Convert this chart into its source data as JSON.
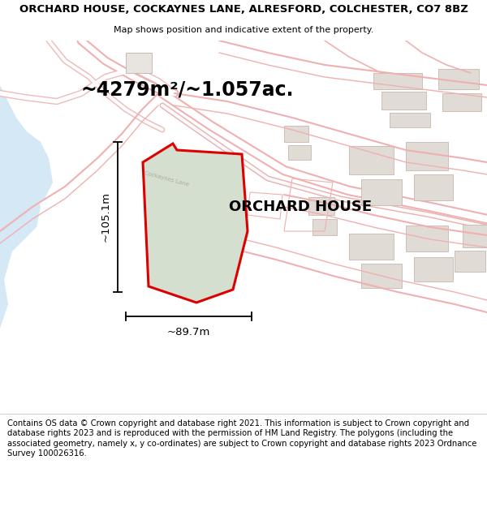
{
  "title": "ORCHARD HOUSE, COCKAYNES LANE, ALRESFORD, COLCHESTER, CO7 8BZ",
  "subtitle": "Map shows position and indicative extent of the property.",
  "footer": "Contains OS data © Crown copyright and database right 2021. This information is subject to Crown copyright and database rights 2023 and is reproduced with the permission of HM Land Registry. The polygons (including the associated geometry, namely x, y co-ordinates) are subject to Crown copyright and database rights 2023 Ordnance Survey 100026316.",
  "area_label": "~4279m²/~1.057ac.",
  "property_label": "ORCHARD HOUSE",
  "dim_horizontal": "~89.7m",
  "dim_vertical": "~105.1m",
  "map_bg": "#ffffff",
  "water_color": "#d4e8f5",
  "property_fill": "#d4dfd0",
  "property_stroke": "#dd0000",
  "road_pink": "#f0b8b8",
  "road_fill": "#ffffff",
  "building_fill": "#e0dbd5",
  "building_stroke": "#c8b8b0",
  "title_fontsize": 9.5,
  "subtitle_fontsize": 8,
  "footer_fontsize": 7.2,
  "area_fontsize": 17,
  "property_label_fontsize": 13,
  "dim_fontsize": 9.5,
  "label_road_color": "#aaaaaa",
  "label_road_size": 5
}
